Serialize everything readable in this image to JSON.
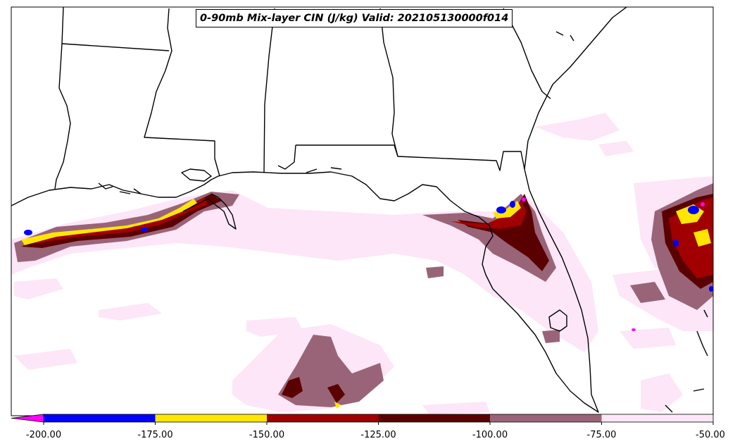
{
  "title": "0-90mb Mix-layer CIN (J/kg) Valid: 202105130000f014",
  "colorbar": {
    "ticks": [
      "-200.00",
      "-175.00",
      "-150.00",
      "-125.00",
      "-100.00",
      "-75.00",
      "-50.00"
    ],
    "colors": [
      "#ff00ff",
      "#0000ff",
      "#ffe600",
      "#a00000",
      "#5a0000",
      "#9a6478",
      "#fce6f8"
    ],
    "extend": "min"
  }
}
